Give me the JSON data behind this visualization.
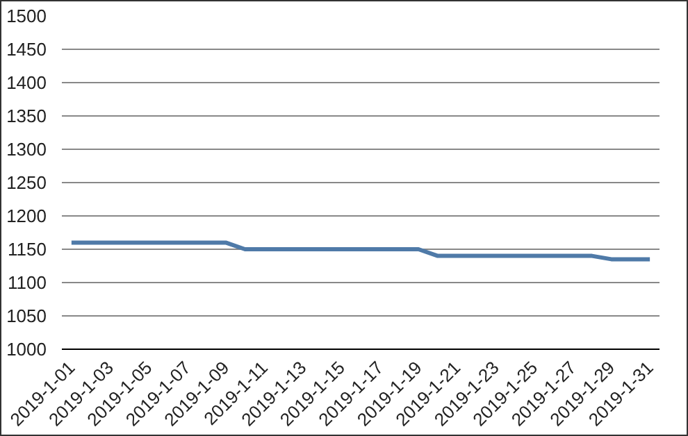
{
  "chart_data": {
    "type": "line",
    "categories": [
      "2019-1-01",
      null,
      "2019-1-03",
      null,
      "2019-1-05",
      null,
      "2019-1-07",
      null,
      "2019-1-09",
      null,
      "2019-1-11",
      null,
      "2019-1-13",
      null,
      "2019-1-15",
      null,
      "2019-1-17",
      null,
      "2019-1-19",
      null,
      "2019-1-21",
      null,
      "2019-1-23",
      null,
      "2019-1-25",
      null,
      "2019-1-27",
      null,
      "2019-1-29",
      null,
      "2019-1-31"
    ],
    "series": [
      {
        "color": "#4f7aa8",
        "values": [
          1160,
          1160,
          1160,
          1160,
          1160,
          1160,
          1160,
          1160,
          1160,
          1150,
          1150,
          1150,
          1150,
          1150,
          1150,
          1150,
          1150,
          1150,
          1150,
          1140,
          1140,
          1140,
          1140,
          1140,
          1140,
          1140,
          1140,
          1140,
          1135,
          1135,
          1135
        ]
      }
    ],
    "ylim": [
      1000,
      1500
    ],
    "yticks": [
      1000,
      1050,
      1100,
      1150,
      1200,
      1250,
      1300,
      1350,
      1400,
      1450,
      1500
    ],
    "grid": "y",
    "marker": "none",
    "line_style": "solid"
  }
}
